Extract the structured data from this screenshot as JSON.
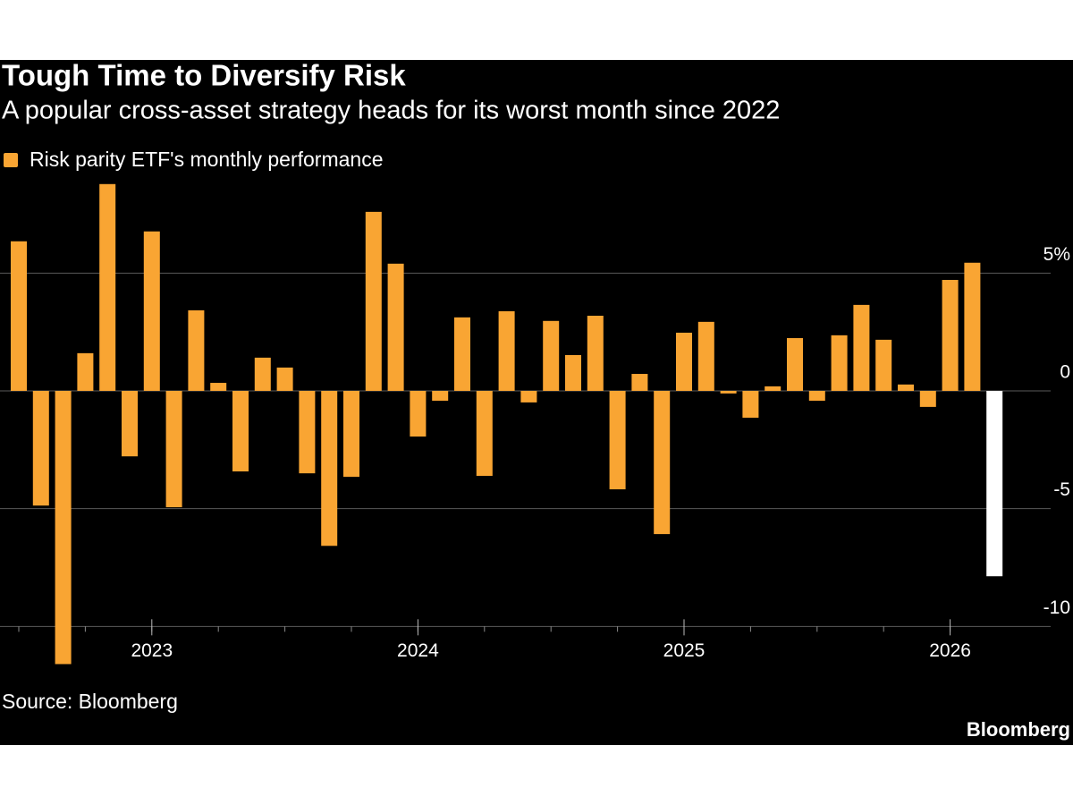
{
  "chart_data": {
    "type": "bar",
    "title": "Tough Time to Diversify Risk",
    "subtitle": "A popular cross-asset strategy heads for its worst month since 2022",
    "source": "Source: Bloomberg",
    "brand": "Bloomberg",
    "categories": [
      null,
      null,
      null,
      null,
      null,
      null,
      "2023",
      null,
      null,
      null,
      null,
      null,
      null,
      null,
      null,
      null,
      null,
      null,
      "2024",
      null,
      null,
      null,
      null,
      null,
      null,
      null,
      null,
      null,
      null,
      null,
      "2025",
      null,
      null,
      null,
      null,
      null,
      null,
      null,
      null,
      null,
      null,
      null,
      "2026",
      null,
      null
    ],
    "series": [
      {
        "name": "Risk parity ETF's monthly performance",
        "color": "#f9a533",
        "values": [
          6.35,
          -4.87,
          -11.6,
          1.6,
          8.78,
          -2.78,
          6.77,
          -4.94,
          3.42,
          0.34,
          -3.42,
          1.41,
          0.99,
          -3.5,
          -6.58,
          -3.65,
          7.6,
          5.4,
          -1.94,
          -0.42,
          3.12,
          -3.61,
          3.38,
          -0.49,
          2.97,
          1.52,
          3.19,
          -4.18,
          0.72,
          -6.08,
          2.47,
          2.93,
          -0.11,
          -1.14,
          0.19,
          2.24,
          -0.42,
          2.36,
          3.65,
          2.17,
          0.27,
          -0.68,
          4.71,
          5.44,
          -7.87
        ],
        "bar_colors": [
          "#f9a533",
          "#f9a533",
          "#f9a533",
          "#f9a533",
          "#f9a533",
          "#f9a533",
          "#f9a533",
          "#f9a533",
          "#f9a533",
          "#f9a533",
          "#f9a533",
          "#f9a533",
          "#f9a533",
          "#f9a533",
          "#f9a533",
          "#f9a533",
          "#f9a533",
          "#f9a533",
          "#f9a533",
          "#f9a533",
          "#f9a533",
          "#f9a533",
          "#f9a533",
          "#f9a533",
          "#f9a533",
          "#f9a533",
          "#f9a533",
          "#f9a533",
          "#f9a533",
          "#f9a533",
          "#f9a533",
          "#f9a533",
          "#f9a533",
          "#f9a533",
          "#f9a533",
          "#f9a533",
          "#f9a533",
          "#f9a533",
          "#f9a533",
          "#f9a533",
          "#f9a533",
          "#f9a533",
          "#f9a533",
          "#f9a533",
          "#ffffff"
        ]
      }
    ],
    "ylim": [
      -12,
      9
    ],
    "yticks": [
      {
        "value": 5,
        "label": "5%"
      },
      0,
      -5,
      -10
    ],
    "grid": true
  }
}
